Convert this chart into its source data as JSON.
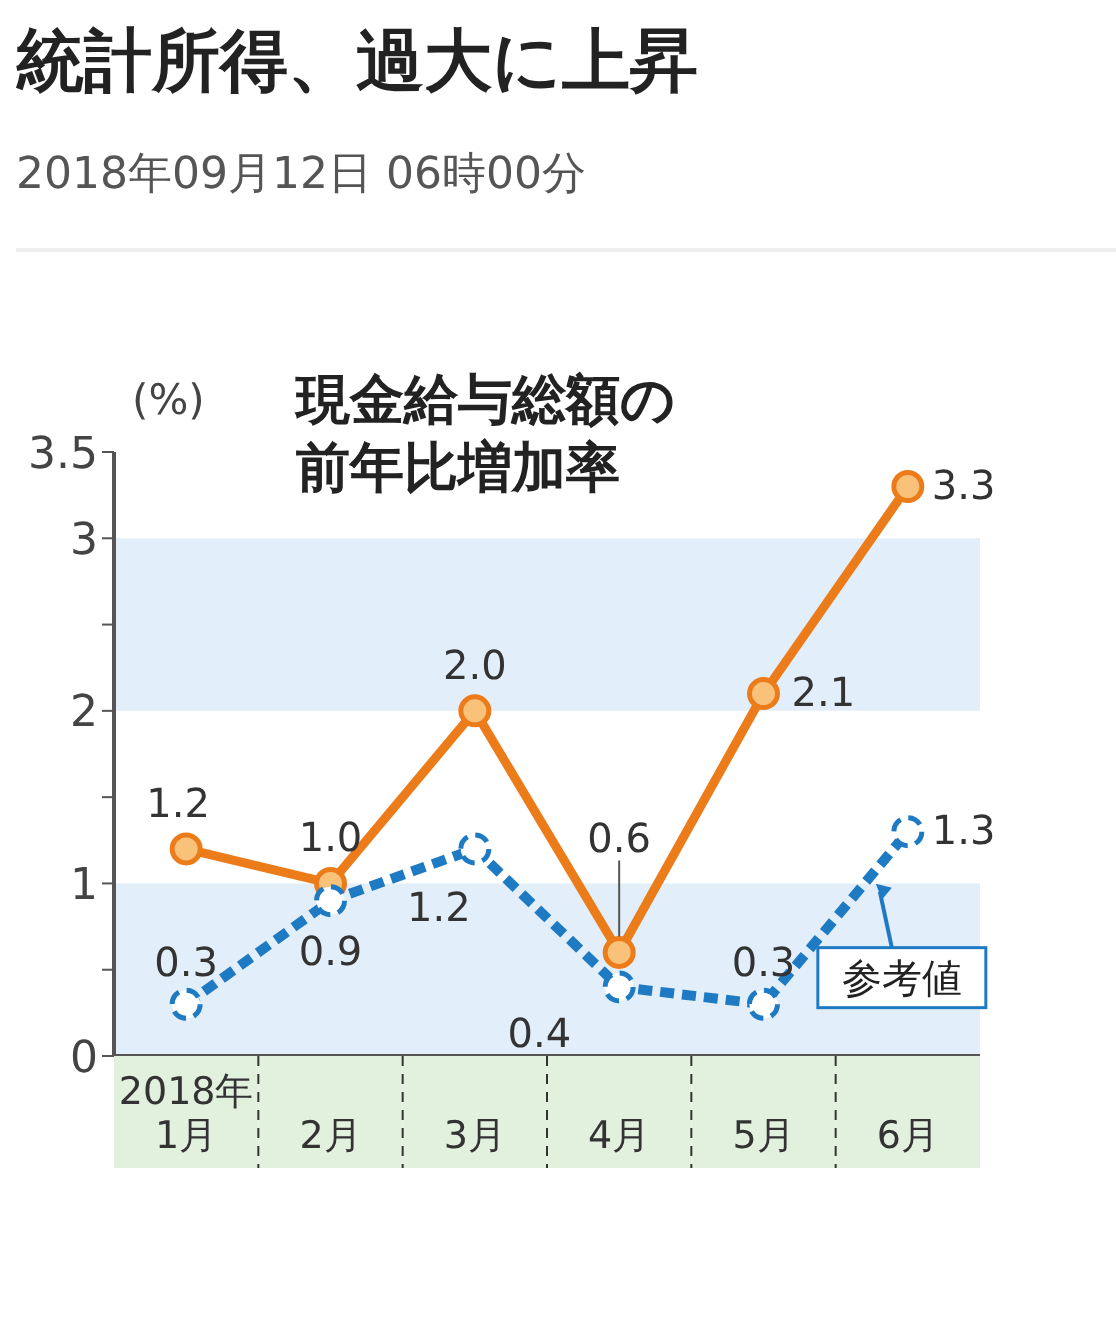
{
  "chart_data": {
    "type": "line",
    "title": "統計所得、過大に上昇",
    "subtitle": "2018年09月12日 06時00分",
    "ylabel": "(%)",
    "annotations": [
      "現金給与総額の前年比増加率"
    ],
    "categories": [
      "2018年 1月",
      "2月",
      "3月",
      "4月",
      "5月",
      "6月"
    ],
    "series": [
      {
        "color": "#ec7b1a",
        "values": [
          1.2,
          1.0,
          2.0,
          0.6,
          2.1,
          3.3
        ],
        "value_labels": [
          "1.2",
          "1.0",
          "2.0",
          "0.6",
          "2.1",
          "3.3"
        ],
        "line_style": "solid"
      },
      {
        "name": "参考値",
        "color": "#1f7ac4",
        "values": [
          0.3,
          0.9,
          1.2,
          0.4,
          0.3,
          1.3
        ],
        "value_labels": [
          "0.3",
          "0.9",
          "1.2",
          "0.4",
          "0.3",
          "1.3"
        ],
        "line_style": "dashed"
      }
    ],
    "ylim": [
      0,
      3.5
    ],
    "yticks": [
      0,
      {
        "value": 0.5,
        "label": null
      },
      1,
      {
        "value": 1.5,
        "label": null
      },
      2,
      {
        "value": 2.5,
        "label": null
      },
      3,
      3.5
    ],
    "bands": [
      {
        "axis": "y",
        "from": 0,
        "to": 1,
        "color": "#e2effa"
      },
      {
        "axis": "y",
        "from": 2,
        "to": 3,
        "color": "#e2effa"
      }
    ],
    "grid": false,
    "legend": "bottom right",
    "marker": "circle"
  }
}
